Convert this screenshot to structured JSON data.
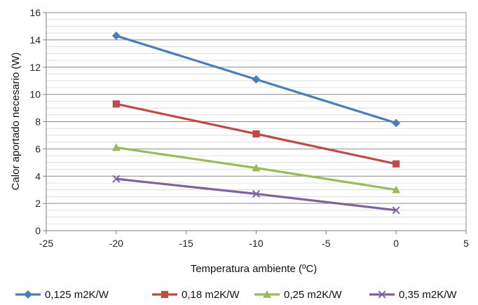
{
  "chart_data": {
    "type": "scatter",
    "title": "",
    "xlabel": "Temperatura ambiente (ºC)",
    "ylabel": "Calor aportado necesario (W)",
    "xlim": [
      -25,
      5
    ],
    "ylim": [
      0,
      16
    ],
    "x_ticks": [
      "-25",
      "-20",
      "-15",
      "-10",
      "-5",
      "0",
      "5"
    ],
    "y_ticks": [
      "0",
      "2",
      "4",
      "6",
      "8",
      "10",
      "12",
      "14",
      "16"
    ],
    "grid": "horizontal",
    "legend_position": "bottom",
    "x": [
      -20,
      -10,
      0
    ],
    "series": [
      {
        "name": "0,125 m2K/W",
        "values": [
          14.3,
          11.1,
          7.9
        ],
        "color": "#4a7ebb",
        "marker": "diamond"
      },
      {
        "name": "0,18 m2K/W",
        "values": [
          9.3,
          7.1,
          4.9
        ],
        "color": "#be4b48",
        "marker": "square"
      },
      {
        "name": "0,25 m2K/W",
        "values": [
          6.1,
          4.6,
          3.0
        ],
        "color": "#9bbb59",
        "marker": "triangle"
      },
      {
        "name": "0,35 m2K/W",
        "values": [
          3.8,
          2.7,
          1.5
        ],
        "color": "#7f63a1",
        "marker": "x"
      }
    ]
  }
}
